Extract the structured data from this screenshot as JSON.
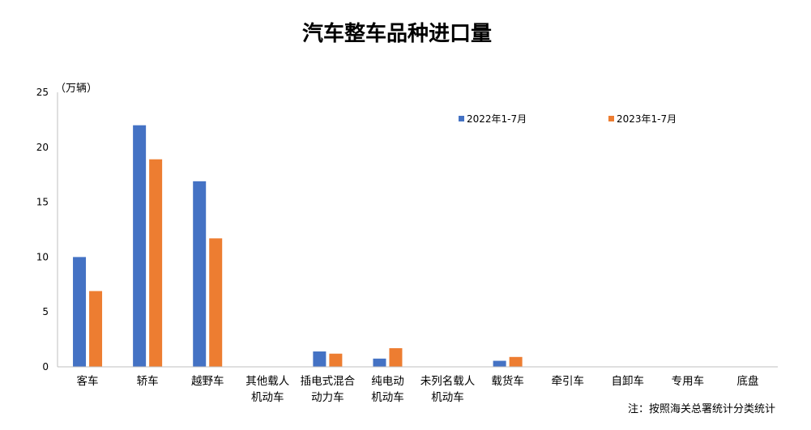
{
  "chart_data": {
    "type": "bar",
    "title": "汽车整车品种进口量",
    "unit_label": "（万辆）",
    "note": "注：按照海关总署统计分类统计",
    "categories": [
      [
        "客车"
      ],
      [
        "轿车"
      ],
      [
        "越野车"
      ],
      [
        "其他载人",
        "机动车"
      ],
      [
        "插电式混合",
        "动力车"
      ],
      [
        "纯电动",
        "机动车"
      ],
      [
        "未列名载人",
        "机动车"
      ],
      [
        "载货车"
      ],
      [
        "牵引车"
      ],
      [
        "自卸车"
      ],
      [
        "专用车"
      ],
      [
        "底盘"
      ]
    ],
    "series": [
      {
        "name": "2022年1-7月",
        "color": "#4472C4",
        "values": [
          10.0,
          22.0,
          16.9,
          0,
          1.4,
          0.75,
          0,
          0.55,
          0,
          0,
          0,
          0
        ]
      },
      {
        "name": "2023年1-7月",
        "color": "#ED7D31",
        "values": [
          6.9,
          18.9,
          11.7,
          0,
          1.2,
          1.7,
          0,
          0.9,
          0,
          0,
          0,
          0
        ]
      }
    ],
    "ylim": [
      0,
      25
    ],
    "yticks": [
      0,
      5,
      10,
      15,
      20,
      25
    ],
    "grid": false,
    "legend": "top-right"
  }
}
